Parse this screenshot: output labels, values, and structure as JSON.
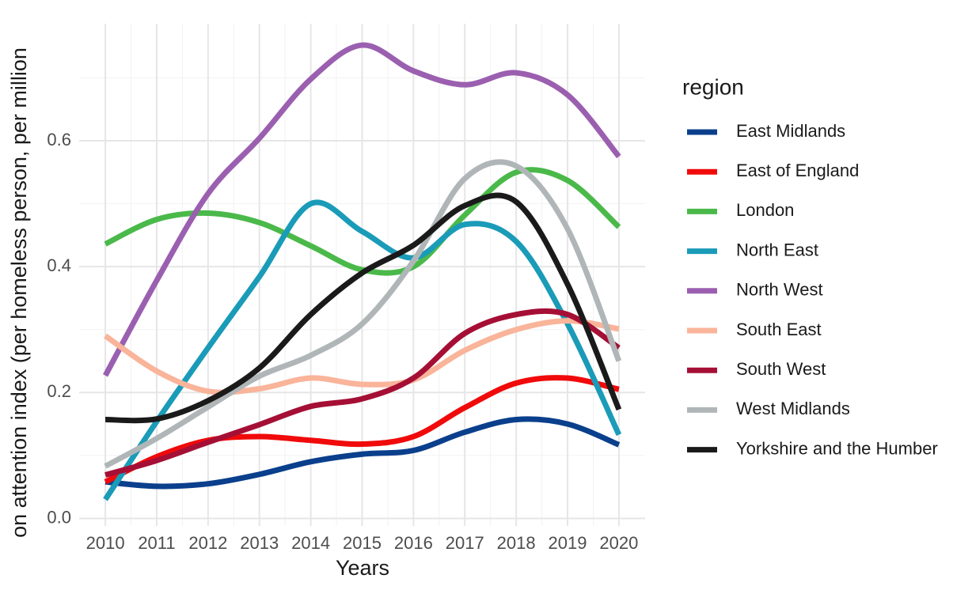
{
  "chart_data": {
    "type": "line",
    "x_label": "Years",
    "y_label": "on attention index (per homeless person, per million",
    "legend_title": "region",
    "legend": "right",
    "grid": true,
    "x": [
      2010,
      2011,
      2012,
      2013,
      2014,
      2015,
      2016,
      2017,
      2018,
      2019,
      2020
    ],
    "xlim": [
      2009.49,
      2020.51
    ],
    "xticks": [
      2010,
      2011,
      2012,
      2013,
      2014,
      2015,
      2016,
      2017,
      2018,
      2019,
      2020
    ],
    "ylim": [
      -0.012,
      0.786
    ],
    "yticks": [
      {
        "value": 0,
        "label": "0.0"
      },
      0.2,
      0.4,
      0.6
    ],
    "series": [
      {
        "name": "East Midlands",
        "color": "#0a3f8c",
        "values": [
          0.058,
          0.051,
          0.055,
          0.07,
          0.09,
          0.102,
          0.108,
          0.137,
          0.157,
          0.15,
          0.117
        ]
      },
      {
        "name": "East of England",
        "color": "#f00a0a",
        "values": [
          0.058,
          0.098,
          0.124,
          0.13,
          0.124,
          0.118,
          0.13,
          0.176,
          0.215,
          0.223,
          0.205
        ]
      },
      {
        "name": "London",
        "color": "#4ab94a",
        "values": [
          0.436,
          0.475,
          0.485,
          0.47,
          0.433,
          0.395,
          0.4,
          0.482,
          0.55,
          0.537,
          0.463
        ]
      },
      {
        "name": "North East",
        "color": "#1a9bb8",
        "values": [
          0.03,
          0.154,
          0.271,
          0.384,
          0.5,
          0.456,
          0.414,
          0.467,
          0.44,
          0.309,
          0.133
        ]
      },
      {
        "name": "North West",
        "color": "#9b5fb0",
        "values": [
          0.227,
          0.378,
          0.516,
          0.604,
          0.698,
          0.752,
          0.711,
          0.689,
          0.708,
          0.673,
          0.575
        ]
      },
      {
        "name": "South East",
        "color": "#f9b49a",
        "values": [
          0.29,
          0.234,
          0.202,
          0.206,
          0.223,
          0.213,
          0.22,
          0.267,
          0.3,
          0.314,
          0.301
        ]
      },
      {
        "name": "South West",
        "color": "#a50f35",
        "values": [
          0.069,
          0.092,
          0.121,
          0.149,
          0.178,
          0.19,
          0.223,
          0.294,
          0.324,
          0.324,
          0.271
        ]
      },
      {
        "name": "West Midlands",
        "color": "#b0b6b8",
        "values": [
          0.083,
          0.127,
          0.177,
          0.226,
          0.259,
          0.309,
          0.409,
          0.54,
          0.56,
          0.46,
          0.25
        ]
      },
      {
        "name": "Yorkshire and the Humber",
        "color": "#1a1a1a",
        "values": [
          0.157,
          0.158,
          0.187,
          0.239,
          0.324,
          0.39,
          0.434,
          0.497,
          0.503,
          0.372,
          0.173
        ]
      }
    ]
  }
}
